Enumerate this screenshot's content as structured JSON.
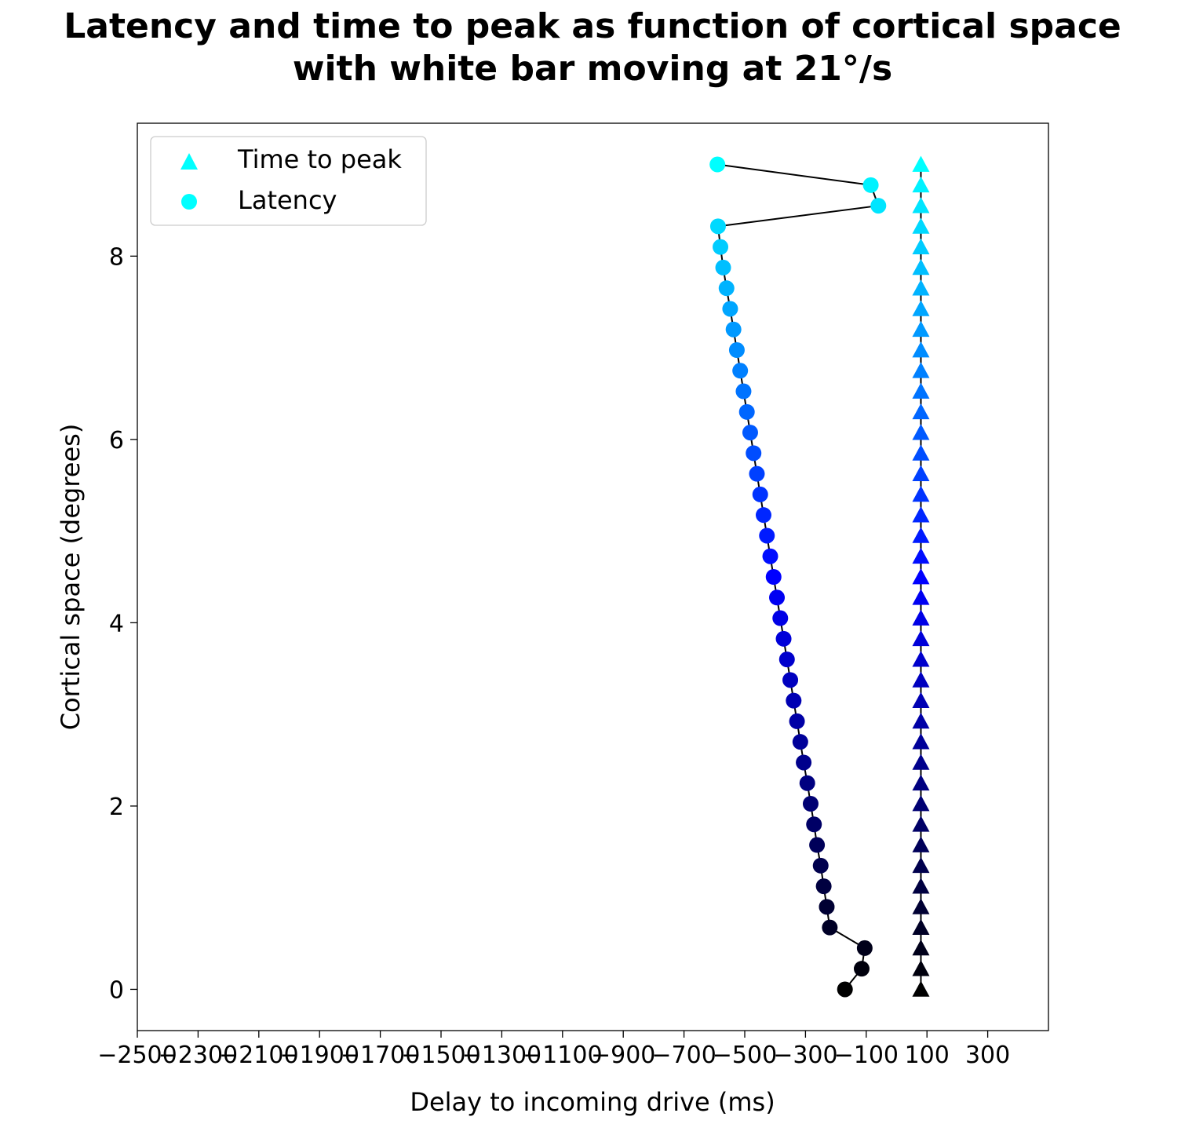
{
  "chart_data": {
    "type": "scatter",
    "title_lines": [
      "Latency and time to peak as function of cortical space",
      "with white bar moving at 21°/s"
    ],
    "xlabel": "Delay to incoming drive (ms)",
    "ylabel": "Cortical space (degrees)",
    "xlim": [
      -2500,
      500
    ],
    "ylim": [
      -0.45,
      9.45
    ],
    "xticks": [
      -2500,
      -2300,
      -2100,
      -1900,
      -1700,
      -1500,
      -1300,
      -1100,
      -900,
      -700,
      -500,
      -300,
      -100,
      100,
      300
    ],
    "xtick_labels": [
      "−2500",
      "−2300",
      "−2100",
      "−1900",
      "−1700",
      "−1500",
      "−1300",
      "−1100",
      "−900",
      "−700",
      "−500",
      "−300",
      "−100",
      "100",
      "300"
    ],
    "yticks": [
      0,
      2,
      4,
      6,
      8
    ],
    "ytick_labels": [
      "0",
      "2",
      "4",
      "6",
      "8"
    ],
    "grid": false,
    "legend_position": "top-left",
    "color_start": "#000000",
    "color_mid": "#0000ff",
    "color_end": "#00ffff",
    "line_color": "#000000",
    "series": [
      {
        "name": "Time to peak",
        "marker": "triangle",
        "y": [
          0.0,
          0.225,
          0.45,
          0.675,
          0.9,
          1.125,
          1.35,
          1.575,
          1.8,
          2.025,
          2.25,
          2.475,
          2.7,
          2.925,
          3.15,
          3.375,
          3.6,
          3.825,
          4.05,
          4.275,
          4.5,
          4.725,
          4.95,
          5.175,
          5.4,
          5.625,
          5.85,
          6.075,
          6.3,
          6.525,
          6.75,
          6.975,
          7.2,
          7.425,
          7.65,
          7.875,
          8.1,
          8.325,
          8.55,
          8.775,
          9.0
        ],
        "x": [
          80,
          80,
          80,
          80,
          80,
          80,
          80,
          80,
          80,
          80,
          80,
          80,
          80,
          80,
          80,
          80,
          80,
          80,
          80,
          80,
          80,
          80,
          80,
          80,
          80,
          80,
          80,
          80,
          80,
          80,
          80,
          80,
          80,
          80,
          80,
          80,
          80,
          80,
          80,
          80,
          80
        ]
      },
      {
        "name": "Latency",
        "marker": "circle",
        "y": [
          0.0,
          0.225,
          0.45,
          0.675,
          0.9,
          1.125,
          1.35,
          1.575,
          1.8,
          2.025,
          2.25,
          2.475,
          2.7,
          2.925,
          3.15,
          3.375,
          3.6,
          3.825,
          4.05,
          4.275,
          4.5,
          4.725,
          4.95,
          5.175,
          5.4,
          5.625,
          5.85,
          6.075,
          6.3,
          6.525,
          6.75,
          6.975,
          7.2,
          7.425,
          7.65,
          7.875,
          8.1,
          8.325,
          8.55,
          8.775,
          9.0
        ],
        "x": [
          -170,
          -115,
          -105,
          -220,
          -230,
          -240,
          -250,
          -262,
          -272,
          -283,
          -294,
          -306,
          -317,
          -328,
          -339,
          -350,
          -361,
          -372,
          -383,
          -394,
          -405,
          -416,
          -427,
          -438,
          -449,
          -460,
          -471,
          -482,
          -493,
          -504,
          -515,
          -526,
          -537,
          -548,
          -560,
          -571,
          -580,
          -588,
          -60,
          -85,
          -590
        ]
      }
    ]
  }
}
